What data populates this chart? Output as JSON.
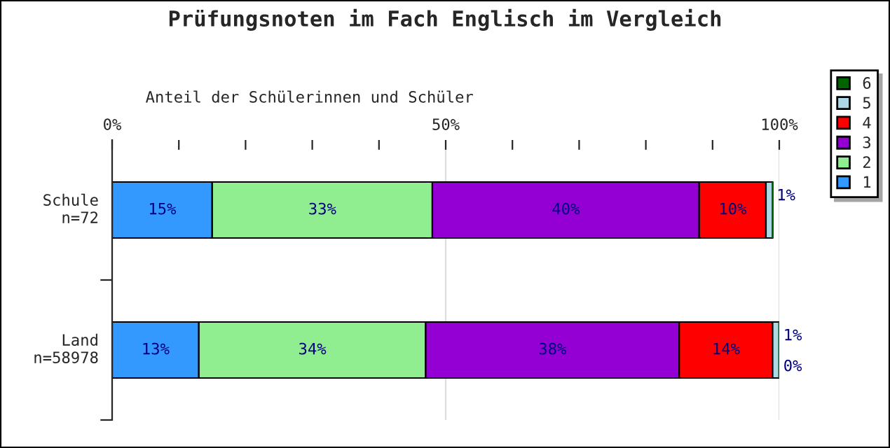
{
  "chart_data": {
    "type": "bar",
    "orientation": "horizontal",
    "stacked": true,
    "title": "Prüfungsnoten im Fach Englisch im Vergleich",
    "xlabel": "Anteil der Schülerinnen und Schüler",
    "categories": [
      "Schule\nn=72",
      "Land\nn=58978"
    ],
    "series": [
      {
        "name": "1",
        "color": "#3399ff",
        "values": [
          15,
          13
        ],
        "value_labels": [
          "15%",
          "13%"
        ]
      },
      {
        "name": "2",
        "color": "#90ee90",
        "values": [
          33,
          34
        ],
        "value_labels": [
          "33%",
          "34%"
        ]
      },
      {
        "name": "3",
        "color": "#9400d3",
        "values": [
          40,
          38
        ],
        "value_labels": [
          "40%",
          "38%"
        ]
      },
      {
        "name": "4",
        "color": "#ff0000",
        "values": [
          10,
          14
        ],
        "value_labels": [
          "10%",
          "14%"
        ]
      },
      {
        "name": "5",
        "color": "#add8e6",
        "values": [
          1,
          1
        ],
        "value_labels": [
          "1%",
          "1%"
        ]
      },
      {
        "name": "6",
        "color": "#006400",
        "values": [
          0,
          0
        ],
        "value_labels": [
          null,
          "0%"
        ]
      }
    ],
    "xlim": [
      0,
      100
    ],
    "xticks": [
      {
        "value": 0,
        "label": "0%"
      },
      {
        "value": 10,
        "label": null
      },
      {
        "value": 20,
        "label": null
      },
      {
        "value": 30,
        "label": null
      },
      {
        "value": 40,
        "label": null
      },
      {
        "value": 50,
        "label": "50%"
      },
      {
        "value": 60,
        "label": null
      },
      {
        "value": 70,
        "label": null
      },
      {
        "value": 80,
        "label": null
      },
      {
        "value": 90,
        "label": null
      },
      {
        "value": 100,
        "label": "100%"
      }
    ],
    "grid": "x",
    "legend": "right"
  }
}
